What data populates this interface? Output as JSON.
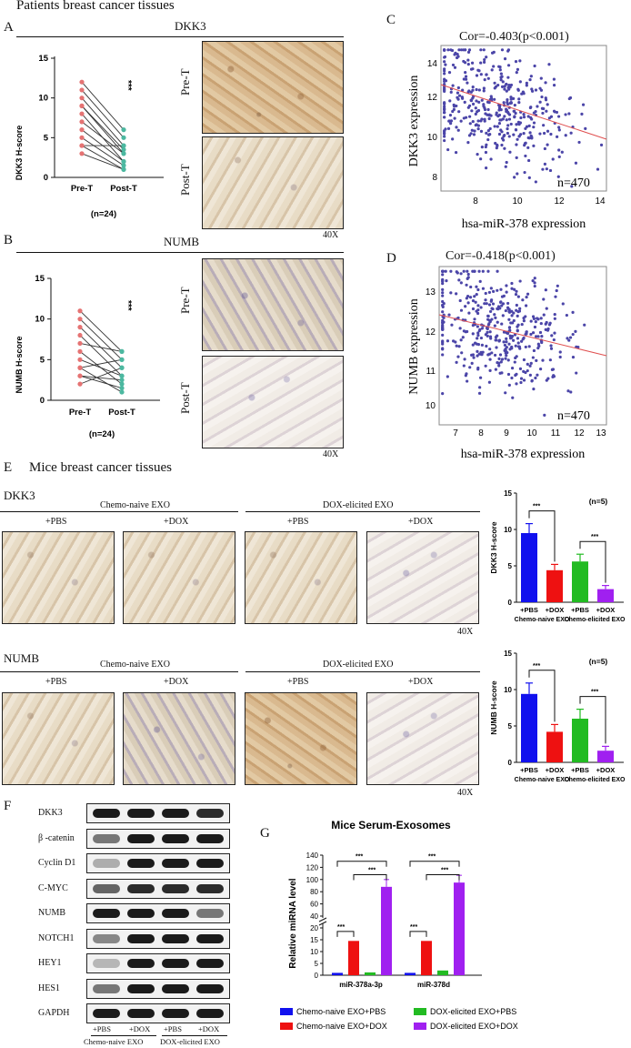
{
  "panel_a": {
    "section_title": "Patients breast cancer tissues",
    "letter": "A",
    "gene": "DKK3",
    "ylabel": "DKK3 H-score",
    "yticks": [
      "15",
      "10",
      "5",
      "0"
    ],
    "xticks": [
      "Pre-T",
      "Post-T"
    ],
    "n_label": "(n=24)",
    "sig": "***",
    "photo_labels": [
      "Pre-T",
      "Post-T"
    ],
    "mag": "40X",
    "pairs": [
      [
        12,
        6
      ],
      [
        11,
        5
      ],
      [
        10,
        4
      ],
      [
        9,
        3
      ],
      [
        9,
        3.5
      ],
      [
        8,
        2
      ],
      [
        7,
        3
      ],
      [
        6,
        2
      ],
      [
        5,
        1.5
      ],
      [
        4,
        1
      ],
      [
        4,
        4
      ],
      [
        3,
        1
      ]
    ]
  },
  "panel_b": {
    "letter": "B",
    "gene": "NUMB",
    "ylabel": "NUMB H-score",
    "yticks": [
      "15",
      "10",
      "5",
      "0"
    ],
    "xticks": [
      "Pre-T",
      "Post-T"
    ],
    "n_label": "(n=24)",
    "sig": "***",
    "photo_labels": [
      "Pre-T",
      "Post-T"
    ],
    "mag": "40X",
    "pairs": [
      [
        11,
        6
      ],
      [
        10,
        5
      ],
      [
        9,
        4
      ],
      [
        8,
        3
      ],
      [
        7,
        6
      ],
      [
        6,
        2
      ],
      [
        5,
        3
      ],
      [
        4,
        1
      ],
      [
        3,
        2.5
      ],
      [
        2,
        4
      ],
      [
        4,
        5
      ],
      [
        3,
        1.5
      ]
    ]
  },
  "panel_c": {
    "letter": "C",
    "cor": "Cor=-0.403(p<0.001)",
    "ylabel": "DKK3 expression",
    "xlabel": "hsa-miR-378 expression",
    "n": "n=470",
    "xticks": [
      "8",
      "10",
      "12",
      "14"
    ],
    "yticks": [
      "14",
      "12",
      "10",
      "8"
    ]
  },
  "panel_d": {
    "letter": "D",
    "cor": "Cor=-0.418(p<0.001)",
    "ylabel": "NUMB expression",
    "xlabel": "hsa-miR-378 expression",
    "n": "n=470",
    "xticks": [
      "7",
      "8",
      "9",
      "10",
      "11",
      "12",
      "13"
    ],
    "yticks": [
      "13",
      "12",
      "11",
      "10"
    ]
  },
  "panel_e": {
    "letter": "E",
    "section_title": "Mice breast cancer tissues",
    "rows": [
      {
        "gene": "DKK3",
        "ylabel": "DKK3 H-score",
        "values": [
          9.5,
          4.4,
          5.6,
          1.8
        ],
        "errors": [
          1.3,
          0.8,
          1.0,
          0.5
        ]
      },
      {
        "gene": "NUMB",
        "ylabel": "NUMB H-score",
        "values": [
          9.4,
          4.2,
          6.0,
          1.6
        ],
        "errors": [
          1.5,
          1.0,
          1.3,
          0.6
        ]
      }
    ],
    "group_a": "Chemo-naive EXO",
    "group_b": "DOX-elicited EXO",
    "treat": [
      "+PBS",
      "+DOX",
      "+PBS",
      "+DOX"
    ],
    "yticks": [
      "15",
      "10",
      "5",
      "0"
    ],
    "n_label": "(n=5)",
    "sig": "***",
    "bar_xlabels": [
      "+PBS",
      "+DOX",
      "+PBS",
      "+DOX"
    ],
    "bar_group_labels": [
      "Chemo-naive EXO",
      "Chemo-elicited EXO"
    ],
    "colors": [
      "#1111ee",
      "#ee1111",
      "#22bb22",
      "#a020f0"
    ],
    "mag": "40X"
  },
  "panel_f": {
    "letter": "F",
    "proteins": [
      "DKK3",
      "β -catenin",
      "Cyclin D1",
      "C-MYC",
      "NUMB",
      "NOTCH1",
      "HEY1",
      "HES1",
      "GAPDH"
    ],
    "intensities": [
      [
        1,
        1,
        1,
        0.9
      ],
      [
        0.5,
        1,
        1,
        1
      ],
      [
        0.2,
        1,
        1,
        1
      ],
      [
        0.6,
        0.9,
        0.9,
        0.9
      ],
      [
        1,
        1,
        1,
        0.5
      ],
      [
        0.4,
        1,
        1,
        1
      ],
      [
        0.15,
        1,
        1,
        1
      ],
      [
        0.5,
        1,
        1,
        1
      ],
      [
        1,
        1,
        1,
        1
      ]
    ],
    "lane_labels": [
      "+PBS",
      "+DOX",
      "+PBS",
      "+DOX"
    ],
    "group_labels": [
      "Chemo-naive EXO",
      "DOX-elicited EXO"
    ]
  },
  "panel_g": {
    "letter": "G",
    "title": "Mice Serum-Exosomes",
    "ylabel": "Relative miRNA level",
    "yticks_top": [
      "140",
      "120",
      "100",
      "80",
      "60",
      "40"
    ],
    "yticks_bottom": [
      "20",
      "15",
      "10",
      "5",
      "0"
    ],
    "sig": "***",
    "categories": [
      "miR-378a-3p",
      "miR-378d"
    ],
    "legend": [
      "Chemo-naive EXO+PBS",
      "DOX-elicited EXO+PBS",
      "Chemo-naive EXO+DOX",
      "DOX-elicited EXO+DOX"
    ],
    "legend_colors": [
      "#1111ee",
      "#22bb22",
      "#ee1111",
      "#a020f0"
    ]
  },
  "chart_data": [
    {
      "type": "bar",
      "title": "",
      "ylabel": "DKK3 H-score",
      "categories": [
        "+PBS",
        "+DOX",
        "+PBS",
        "+DOX"
      ],
      "groups": [
        "Chemo-naive EXO",
        "Chemo-elicited EXO"
      ],
      "values": [
        9.5,
        4.4,
        5.6,
        1.8
      ],
      "ylim": [
        0,
        15
      ]
    },
    {
      "type": "bar",
      "title": "",
      "ylabel": "NUMB H-score",
      "categories": [
        "+PBS",
        "+DOX",
        "+PBS",
        "+DOX"
      ],
      "groups": [
        "Chemo-naive EXO",
        "Chemo-elicited EXO"
      ],
      "values": [
        9.4,
        4.2,
        6.0,
        1.6
      ],
      "ylim": [
        0,
        15
      ]
    },
    {
      "type": "bar",
      "title": "Mice Serum-Exosomes",
      "ylabel": "Relative miRNA level",
      "categories": [
        "miR-378a-3p",
        "miR-378d"
      ],
      "series": [
        {
          "name": "Chemo-naive EXO+PBS",
          "values": [
            1,
            1
          ]
        },
        {
          "name": "Chemo-naive EXO+DOX",
          "values": [
            14.5,
            14.5
          ]
        },
        {
          "name": "DOX-elicited EXO+PBS",
          "values": [
            1.2,
            2
          ]
        },
        {
          "name": "DOX-elicited EXO+DOX",
          "values": [
            88,
            95
          ]
        }
      ],
      "ylim": [
        0,
        140
      ]
    }
  ]
}
